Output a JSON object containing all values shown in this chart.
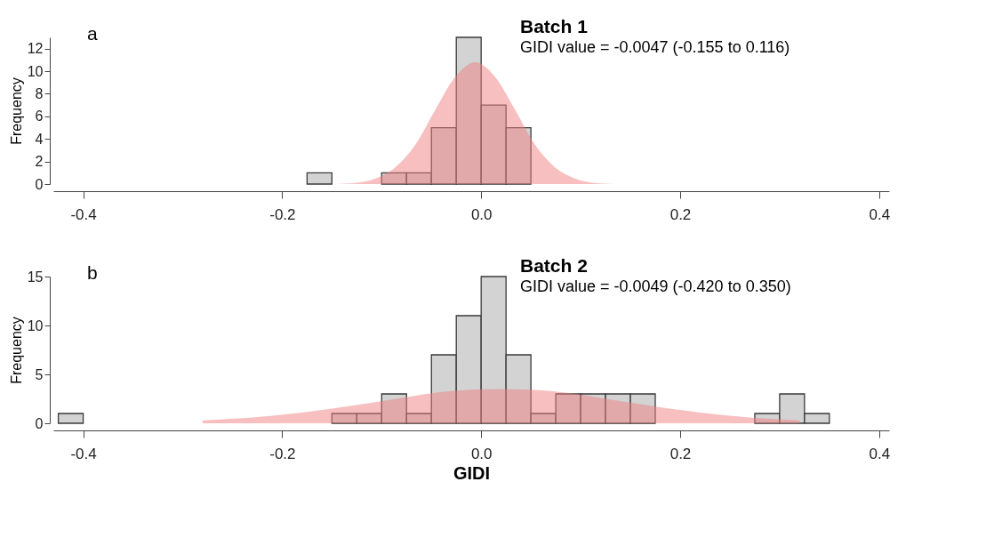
{
  "chart_data": [
    {
      "type": "histogram",
      "title": "Batch 1",
      "subtitle": "GIDI value = -0.0047 (-0.155 to 0.116)",
      "ylabel": "Frequency",
      "annotations": [
        "a"
      ],
      "color": "#d3d3d3",
      "bins": [
        -0.175,
        -0.15,
        -0.125,
        -0.1,
        -0.075,
        -0.05,
        -0.025,
        0,
        0.025,
        0.05
      ],
      "values": [
        1,
        0,
        0,
        1,
        1,
        5,
        13,
        7,
        5
      ],
      "series": [
        {
          "type": "area",
          "color": "#f08080",
          "x": [
            -0.146,
            -0.126,
            -0.106,
            -0.086,
            -0.066,
            -0.046,
            -0.026,
            -0.006,
            0.014,
            0.034,
            0.054,
            0.074,
            0.094,
            0.114,
            0.134
          ],
          "values": [
            0,
            0.1,
            0.5,
            1.5,
            3.5,
            6.6,
            9.5,
            10.8,
            9.5,
            6.6,
            3.5,
            1.5,
            0.5,
            0.1,
            0
          ]
        }
      ],
      "xlim": [
        -0.43,
        0.41
      ],
      "xticks": [
        -0.4,
        -0.2,
        {
          "value": 0,
          "label": "0.0"
        },
        0.2,
        0.4
      ],
      "ylim": [
        0,
        13
      ],
      "yticks": [
        0,
        2,
        4,
        6,
        8,
        10,
        12
      ]
    },
    {
      "type": "histogram",
      "title": "Batch 2",
      "subtitle": "GIDI value = -0.0049 (-0.420 to 0.350)",
      "xlabel": "GIDI",
      "ylabel": "Frequency",
      "annotations": [
        "b"
      ],
      "color": "#d3d3d3",
      "bins": [
        -0.425,
        -0.4,
        -0.375,
        -0.35,
        -0.325,
        -0.3,
        -0.275,
        -0.25,
        -0.225,
        -0.2,
        -0.175,
        -0.15,
        -0.125,
        -0.1,
        -0.075,
        -0.05,
        -0.025,
        0,
        0.025,
        0.05,
        0.075,
        0.1,
        0.125,
        0.15,
        0.175,
        0.2,
        0.225,
        0.25,
        0.275,
        0.3,
        0.325,
        0.35
      ],
      "values": [
        1,
        0,
        0,
        0,
        0,
        0,
        0,
        0,
        0,
        0,
        0,
        1,
        1,
        3,
        1,
        7,
        11,
        15,
        7,
        1,
        3,
        3,
        3,
        3,
        0,
        0,
        0,
        0,
        1,
        3,
        1
      ],
      "series": [
        {
          "type": "area",
          "color": "#f08080",
          "x": [
            -0.28,
            -0.23,
            -0.18,
            -0.13,
            -0.08,
            -0.03,
            0.02,
            0.07,
            0.12,
            0.17,
            0.22,
            0.27,
            0.32
          ],
          "values": [
            0.3,
            0.6,
            1.1,
            1.8,
            2.6,
            3.3,
            3.5,
            3.3,
            2.6,
            1.8,
            1.1,
            0.6,
            0.3
          ]
        }
      ],
      "xlim": [
        -0.43,
        0.41
      ],
      "xticks": [
        -0.4,
        -0.2,
        {
          "value": 0,
          "label": "0.0"
        },
        0.2,
        0.4
      ],
      "ylim": [
        0,
        15
      ],
      "yticks": [
        0,
        5,
        10,
        15
      ]
    }
  ]
}
